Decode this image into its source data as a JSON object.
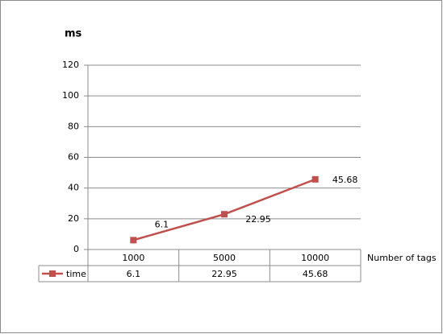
{
  "chart_data": {
    "type": "line",
    "y_label": "ms",
    "x_label": "Number of tags",
    "categories": [
      "1000",
      "5000",
      "10000"
    ],
    "series": [
      {
        "name": "time",
        "color": "#c0504d",
        "values": [
          6.1,
          22.95,
          45.68
        ]
      }
    ],
    "ylim": [
      0,
      120
    ],
    "yticks": [
      0,
      20,
      40,
      60,
      80,
      100,
      120
    ],
    "grid": true,
    "data_labels": true,
    "data_table": true
  }
}
